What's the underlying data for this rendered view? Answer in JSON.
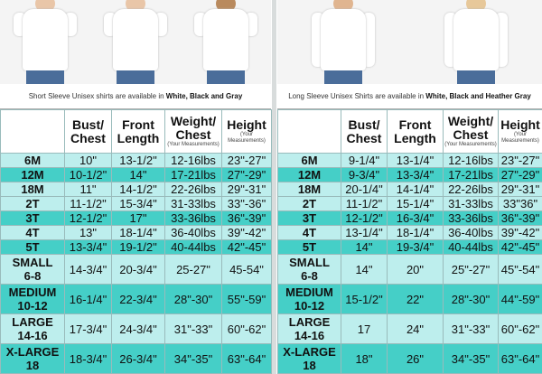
{
  "colors": {
    "light_row": "#bdeeed",
    "dark_row": "#45cfc7"
  },
  "left": {
    "caption_prefix": "Short Sleeve Unisex shirts are available in ",
    "caption_colors": "White, Black and Gray",
    "headers": {
      "bust": "Bust/ Chest",
      "front": "Front Length",
      "weight": "Weight/ Chest",
      "weight_note": "(Your Measurements)",
      "height": "Height",
      "height_note": "(Your Measurements)"
    },
    "rows": [
      [
        "6M",
        "10\"",
        "13-1/2\"",
        "12-16lbs",
        "23\"-27\""
      ],
      [
        "12M",
        "10-1/2\"",
        "14\"",
        "17-21lbs",
        "27\"-29\""
      ],
      [
        "18M",
        "11\"",
        "14-1/2\"",
        "22-26lbs",
        "29\"-31\""
      ],
      [
        "2T",
        "11-1/2\"",
        "15-3/4\"",
        "31-33lbs",
        "33\"-36\""
      ],
      [
        "3T",
        "12-1/2\"",
        "17\"",
        "33-36lbs",
        "36\"-39\""
      ],
      [
        "4T",
        "13\"",
        "18-1/4\"",
        "36-40lbs",
        "39\"-42\""
      ],
      [
        "5T",
        "13-3/4\"",
        "19-1/2\"",
        "40-44lbs",
        "42\"-45\""
      ],
      [
        "SMALL 6-8",
        "14-3/4\"",
        "20-3/4\"",
        "25-27\"",
        "45-54\""
      ],
      [
        "MEDIUM 10-12",
        "16-1/4\"",
        "22-3/4\"",
        "28\"-30\"",
        "55\"-59\""
      ],
      [
        "LARGE 14-16",
        "17-3/4\"",
        "24-3/4\"",
        "31\"-33\"",
        "60\"-62\""
      ],
      [
        "X-LARGE 18",
        "18-3/4\"",
        "26-3/4\"",
        "34\"-35\"",
        "63\"-64\""
      ]
    ]
  },
  "right": {
    "caption_prefix": "Long Sleeve Unisex Shirts are available in ",
    "caption_colors": "White, Black and Heather Gray",
    "headers": {
      "bust": "Bust/ Chest",
      "front": "Front Length",
      "weight": "Weight/ Chest",
      "weight_note": "(Your Measurements)",
      "height": "Height",
      "height_note": "(Your Measurements)"
    },
    "rows": [
      [
        "6M",
        "9-1/4\"",
        "13-1/4\"",
        "12-16lbs",
        "23\"-27\""
      ],
      [
        "12M",
        "9-3/4\"",
        "13-3/4\"",
        "17-21lbs",
        "27\"-29\""
      ],
      [
        "18M",
        "20-1/4\"",
        "14-1/4\"",
        "22-26lbs",
        "29\"-31\""
      ],
      [
        "2T",
        "11-1/2\"",
        "15-1/4\"",
        "31-33lbs",
        "33\"36\""
      ],
      [
        "3T",
        "12-1/2\"",
        "16-3/4\"",
        "33-36lbs",
        "36\"-39\""
      ],
      [
        "4T",
        "13-1/4\"",
        "18-1/4\"",
        "36-40lbs",
        "39\"-42\""
      ],
      [
        "5T",
        "14\"",
        "19-3/4\"",
        "40-44lbs",
        "42\"-45\""
      ],
      [
        "SMALL 6-8",
        "14\"",
        "20\"",
        "25\"-27\"",
        "45\"-54\""
      ],
      [
        "MEDIUM 10-12",
        "15-1/2\"",
        "22\"",
        "28\"-30\"",
        "44\"-59\""
      ],
      [
        "LARGE 14-16",
        "17",
        "24\"",
        "31\"-33\"",
        "60\"-62\""
      ],
      [
        "X-LARGE 18",
        "18\"",
        "26\"",
        "34\"-35\"",
        "63\"-64\""
      ]
    ]
  }
}
